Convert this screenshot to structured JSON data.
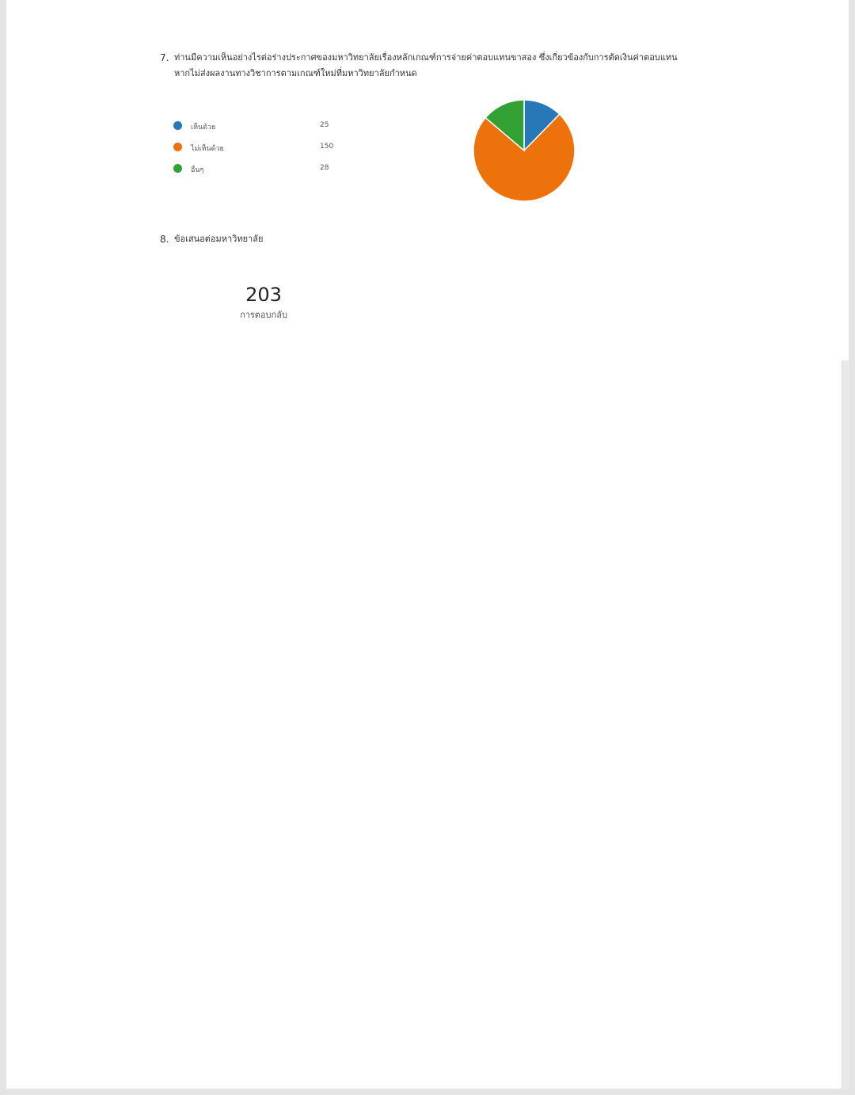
{
  "questions": [
    {
      "number": "7.",
      "text": "ท่านมีความเห็นอย่างไรต่อร่างประกาศของมหาวิทยาลัยเรื่องหลักเกณฑ์การจ่ายค่าตอบแทนขาสอง ซึ่งเกี่ยวข้องกับการตัดเงินค่าตอบแทน หากไม่ส่งผลงานทางวิชาการตามเกณฑ์ใหม่ที่มหาวิทยาลัยกำหนด"
    },
    {
      "number": "8.",
      "text": "ข้อเสนอต่อมหาวิทยาลัย",
      "response_count": "203",
      "response_label": "การตอบกลับ"
    }
  ],
  "chart_data": {
    "type": "pie",
    "legend": "left",
    "categories": [
      "เห็นด้วย",
      "ไม่เห็นด้วย",
      "อื่นๆ"
    ],
    "values": [
      25,
      150,
      28
    ],
    "colors": [
      "#2878b8",
      "#ee720c",
      "#32a032"
    ]
  }
}
